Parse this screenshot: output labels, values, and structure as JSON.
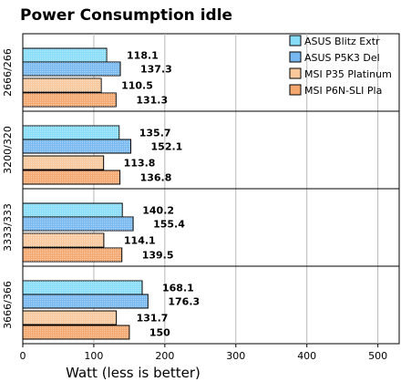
{
  "chart_data": {
    "type": "bar",
    "orientation": "horizontal",
    "title": "Power Consumption idle",
    "xlabel": "Watt (less is better)",
    "ylabel": "",
    "xlim": [
      0,
      530
    ],
    "xticks": [
      0,
      100,
      200,
      300,
      400,
      500
    ],
    "grid": "vertical",
    "legend_position": "top-right",
    "categories": [
      "2666/266",
      "3200/320",
      "3333/333",
      "3666/366"
    ],
    "series": [
      {
        "name": "ASUS Blitz Extr",
        "color": "#87dcfa",
        "values": [
          118.1,
          135.7,
          140.2,
          168.1
        ]
      },
      {
        "name": "ASUS P5K3 Del",
        "color": "#78b8f0",
        "values": [
          137.3,
          152.1,
          155.4,
          176.3
        ]
      },
      {
        "name": "MSI P35 Platinum",
        "color": "#f8c89c",
        "values": [
          110.5,
          113.8,
          114.1,
          131.7
        ]
      },
      {
        "name": "MSI P6N-SLI Pla",
        "color": "#f4a870",
        "values": [
          131.3,
          136.8,
          139.5,
          150
        ]
      }
    ],
    "value_labels": [
      [
        "118.1",
        "137.3",
        "110.5",
        "131.3"
      ],
      [
        "135.7",
        "152.1",
        "113.8",
        "136.8"
      ],
      [
        "140.2",
        "155.4",
        "114.1",
        "139.5"
      ],
      [
        "168.1",
        "176.3",
        "131.7",
        "150"
      ]
    ]
  }
}
